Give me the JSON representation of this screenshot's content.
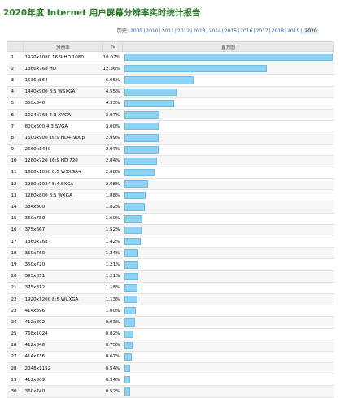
{
  "title": "2020年度 Internet 用户屏幕分辨率实时统计报告",
  "history": {
    "label": "历史:",
    "years": [
      "2009",
      "2010",
      "2011",
      "2012",
      "2013",
      "2014",
      "2015",
      "2016",
      "2017",
      "2018",
      "2019",
      "2020"
    ],
    "current": "2020"
  },
  "table": {
    "headers": {
      "rank": "",
      "resolution": "分辨率",
      "percent": "%",
      "chart": "直方图"
    }
  },
  "colors": {
    "bar": "#8ed3f6",
    "bar_border": "#6fbde5",
    "title": "#2c7a2c"
  },
  "chart_data": {
    "type": "bar",
    "orientation": "horizontal",
    "max_percent": 18.07,
    "rows": [
      {
        "rank": 1,
        "resolution": "1920x1080 16:9 HD 1080",
        "percent": 18.07,
        "percent_label": "18.07%"
      },
      {
        "rank": 2,
        "resolution": "1366x768 HD",
        "percent": 12.36,
        "percent_label": "12.36%"
      },
      {
        "rank": 3,
        "resolution": "1536x864",
        "percent": 6.05,
        "percent_label": "6.05%"
      },
      {
        "rank": 4,
        "resolution": "1440x900 8:5 WSXGA",
        "percent": 4.55,
        "percent_label": "4.55%"
      },
      {
        "rank": 5,
        "resolution": "360x640",
        "percent": 4.33,
        "percent_label": "4.33%"
      },
      {
        "rank": 6,
        "resolution": "1024x768 4:3 XVGA",
        "percent": 3.07,
        "percent_label": "3.07%"
      },
      {
        "rank": 7,
        "resolution": "800x600 4:3 SVGA",
        "percent": 3.0,
        "percent_label": "3.00%"
      },
      {
        "rank": 8,
        "resolution": "1600x900 16:9 HD+ 900p",
        "percent": 2.99,
        "percent_label": "2.99%"
      },
      {
        "rank": 9,
        "resolution": "2560x1440",
        "percent": 2.97,
        "percent_label": "2.97%"
      },
      {
        "rank": 10,
        "resolution": "1280x720 16:9 HD 720",
        "percent": 2.84,
        "percent_label": "2.84%"
      },
      {
        "rank": 11,
        "resolution": "1680x1050 8:5 WSXGA+",
        "percent": 2.68,
        "percent_label": "2.68%"
      },
      {
        "rank": 12,
        "resolution": "1280x1024 5:4 SXGA",
        "percent": 2.08,
        "percent_label": "2.08%"
      },
      {
        "rank": 13,
        "resolution": "1280x800 8:5 WXGA",
        "percent": 1.88,
        "percent_label": "1.88%"
      },
      {
        "rank": 14,
        "resolution": "384x800",
        "percent": 1.82,
        "percent_label": "1.82%"
      },
      {
        "rank": 15,
        "resolution": "360x780",
        "percent": 1.6,
        "percent_label": "1.60%"
      },
      {
        "rank": 16,
        "resolution": "375x667",
        "percent": 1.52,
        "percent_label": "1.52%"
      },
      {
        "rank": 17,
        "resolution": "1360x768",
        "percent": 1.42,
        "percent_label": "1.42%"
      },
      {
        "rank": 18,
        "resolution": "360x760",
        "percent": 1.24,
        "percent_label": "1.24%"
      },
      {
        "rank": 19,
        "resolution": "360x720",
        "percent": 1.21,
        "percent_label": "1.21%"
      },
      {
        "rank": 20,
        "resolution": "393x851",
        "percent": 1.21,
        "percent_label": "1.21%"
      },
      {
        "rank": 21,
        "resolution": "375x812",
        "percent": 1.18,
        "percent_label": "1.18%"
      },
      {
        "rank": 22,
        "resolution": "1920x1200 8:5 WUXGA",
        "percent": 1.13,
        "percent_label": "1.13%"
      },
      {
        "rank": 23,
        "resolution": "414x896",
        "percent": 1.0,
        "percent_label": "1.00%"
      },
      {
        "rank": 24,
        "resolution": "412x892",
        "percent": 0.93,
        "percent_label": "0.93%"
      },
      {
        "rank": 25,
        "resolution": "768x1024",
        "percent": 0.82,
        "percent_label": "0.82%"
      },
      {
        "rank": 26,
        "resolution": "412x846",
        "percent": 0.75,
        "percent_label": "0.75%"
      },
      {
        "rank": 27,
        "resolution": "414x736",
        "percent": 0.67,
        "percent_label": "0.67%"
      },
      {
        "rank": 28,
        "resolution": "2048x1152",
        "percent": 0.54,
        "percent_label": "0.54%"
      },
      {
        "rank": 29,
        "resolution": "412x869",
        "percent": 0.54,
        "percent_label": "0.54%"
      },
      {
        "rank": 30,
        "resolution": "360x740",
        "percent": 0.52,
        "percent_label": "0.52%"
      }
    ]
  }
}
